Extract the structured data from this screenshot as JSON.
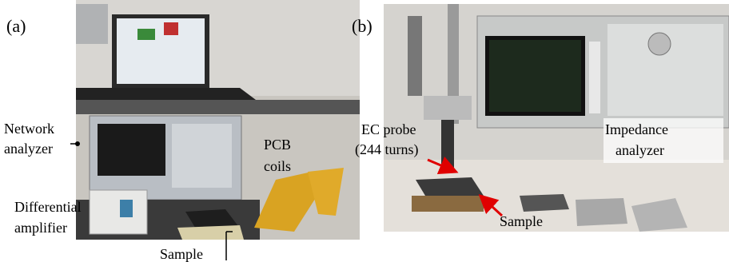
{
  "panels": [
    {
      "label": "(a)",
      "annotations": [
        {
          "lines": [
            "Network",
            "analyzer"
          ]
        },
        {
          "lines": [
            "PCB",
            "coils"
          ]
        },
        {
          "lines": [
            "Differential",
            "amplifier"
          ]
        },
        {
          "lines": [
            "Sample"
          ]
        }
      ]
    },
    {
      "label": "(b)",
      "annotations": [
        {
          "lines": [
            "EC probe",
            "(244 turns)"
          ]
        },
        {
          "lines": [
            "Impedance",
            "analyzer"
          ]
        },
        {
          "lines": [
            "Sample"
          ]
        }
      ]
    }
  ]
}
